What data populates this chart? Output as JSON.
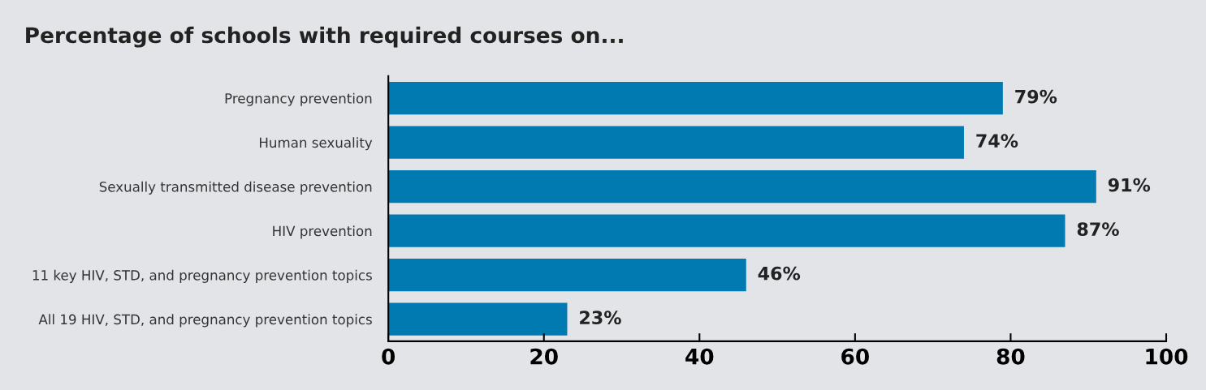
{
  "chart_data": {
    "type": "bar",
    "orientation": "horizontal",
    "title": "Percentage of schools with required courses on...",
    "categories": [
      "Pregnancy prevention",
      "Human sexuality",
      "Sexually transmitted disease prevention",
      "HIV prevention",
      "11 key HIV, STD, and pregnancy prevention topics",
      "All 19 HIV, STD, and pregnancy prevention topics"
    ],
    "values": [
      79,
      74,
      91,
      87,
      46,
      23
    ],
    "value_labels": [
      "79%",
      "74%",
      "91%",
      "87%",
      "46%",
      "23%"
    ],
    "color": "#007ab0",
    "xlim": [
      0,
      100
    ],
    "xticks": [
      0,
      20,
      40,
      60,
      80,
      100
    ],
    "grid": false
  }
}
